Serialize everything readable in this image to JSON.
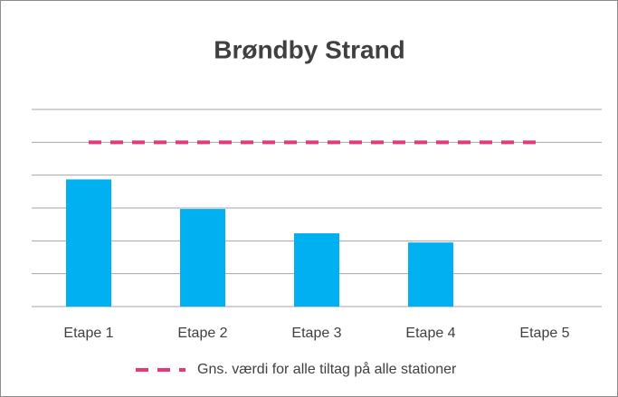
{
  "chart_data": {
    "type": "bar",
    "title": "Brøndby Strand",
    "categories": [
      "Etape 1",
      "Etape 2",
      "Etape 3",
      "Etape 4",
      "Etape 5"
    ],
    "series": [
      {
        "name": null,
        "type": "bar",
        "color": "#00b0f0",
        "values": [
          3.87,
          2.97,
          2.23,
          1.95,
          null
        ]
      },
      {
        "name": "Gns. værdi for alle tiltag på alle stationer",
        "type": "line",
        "dashed": true,
        "color": "#e8387a",
        "values": [
          5,
          5,
          5,
          5,
          5
        ]
      }
    ],
    "ylim": [
      0,
      6
    ],
    "yticks": [
      0,
      1,
      2,
      3,
      4,
      5,
      6
    ],
    "grid": true,
    "legend": "bottom"
  }
}
